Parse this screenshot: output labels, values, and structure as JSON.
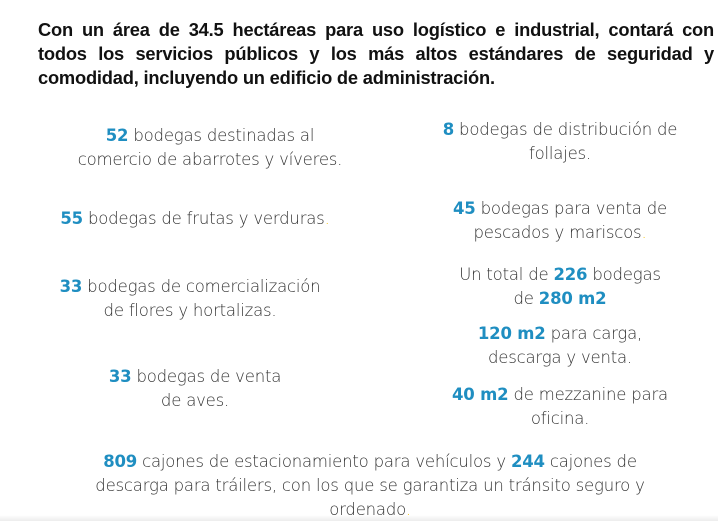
{
  "intro": "Con un área de 34.5 hectáreas para uso logístico e industrial, contará con todos los servicios públicos y los más altos estándares de seguridad y comodidad, incluyendo un edificio de administración.",
  "colors": {
    "accent": "#1f8ec1",
    "dot": "#f2c10f",
    "text": "#333333"
  },
  "blocks": [
    {
      "id": "abarrotes",
      "segments": [
        {
          "t": "num",
          "v": "52"
        },
        {
          "t": "text",
          "v": " bodegas destinadas al"
        },
        {
          "t": "br"
        },
        {
          "t": "text",
          "v": "comercio de abarrotes y víveres."
        }
      ]
    },
    {
      "id": "follajes",
      "segments": [
        {
          "t": "num",
          "v": "8"
        },
        {
          "t": "text",
          "v": " bodegas de distribución de"
        },
        {
          "t": "br"
        },
        {
          "t": "text",
          "v": "follajes."
        }
      ]
    },
    {
      "id": "frutas",
      "segments": [
        {
          "t": "num",
          "v": "55"
        },
        {
          "t": "text",
          "v": " bodegas de frutas y verduras"
        },
        {
          "t": "dot",
          "v": "."
        }
      ]
    },
    {
      "id": "pescados",
      "segments": [
        {
          "t": "num",
          "v": "45"
        },
        {
          "t": "text",
          "v": " bodegas para venta de"
        },
        {
          "t": "br"
        },
        {
          "t": "text",
          "v": "pescados y mariscos"
        },
        {
          "t": "dot",
          "v": "."
        }
      ]
    },
    {
      "id": "flores",
      "segments": [
        {
          "t": "num",
          "v": "33"
        },
        {
          "t": "text",
          "v": " bodegas de comercialización"
        },
        {
          "t": "br"
        },
        {
          "t": "text",
          "v": "de flores y hortalizas."
        }
      ]
    },
    {
      "id": "total",
      "segments": [
        {
          "t": "text",
          "v": "Un total de "
        },
        {
          "t": "num",
          "v": "226"
        },
        {
          "t": "text",
          "v": " bodegas"
        },
        {
          "t": "br"
        },
        {
          "t": "text",
          "v": "de "
        },
        {
          "t": "num",
          "v": "280 m2"
        }
      ]
    },
    {
      "id": "carga",
      "segments": [
        {
          "t": "num",
          "v": "120 m2"
        },
        {
          "t": "text",
          "v": " para carga,"
        },
        {
          "t": "br"
        },
        {
          "t": "text",
          "v": "descarga y venta."
        }
      ]
    },
    {
      "id": "aves",
      "segments": [
        {
          "t": "num",
          "v": "33"
        },
        {
          "t": "text",
          "v": " bodegas de venta"
        },
        {
          "t": "br"
        },
        {
          "t": "text",
          "v": "de aves."
        }
      ]
    },
    {
      "id": "mezzanine",
      "segments": [
        {
          "t": "num",
          "v": "40 m2"
        },
        {
          "t": "text",
          "v": " de mezzanine para"
        },
        {
          "t": "br"
        },
        {
          "t": "text",
          "v": "oficina."
        }
      ]
    },
    {
      "id": "estacionamiento",
      "segments": [
        {
          "t": "num",
          "v": "809"
        },
        {
          "t": "text",
          "v": " cajones de estacionamiento para vehículos y "
        },
        {
          "t": "num",
          "v": "244"
        },
        {
          "t": "text",
          "v": " cajones de"
        },
        {
          "t": "br"
        },
        {
          "t": "text",
          "v": "descarga para tráilers, con los que se garantiza un tránsito seguro y"
        },
        {
          "t": "br"
        },
        {
          "t": "text",
          "v": "ordenado"
        },
        {
          "t": "dot",
          "v": "."
        }
      ]
    }
  ]
}
